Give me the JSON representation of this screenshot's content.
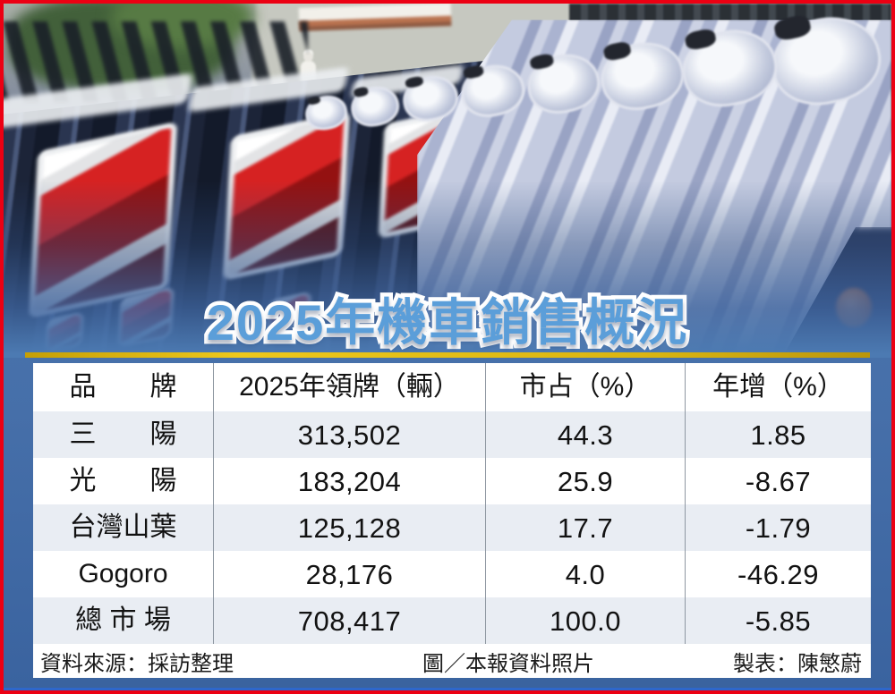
{
  "title": {
    "text": "2025年機車銷售概況",
    "color": "#5b9ed9"
  },
  "colors": {
    "frame_red": "#ec0013",
    "panel_blue": "#4a77b0",
    "gold_rule": "#ddb410",
    "row_stripe": "#e9edf3"
  },
  "photo": {
    "description_icons": {
      "scooter_row_icon": "rows of lavender scooters",
      "taillight_icon": "red motorcycle taillights"
    }
  },
  "table": {
    "columns": [
      "品　　牌",
      "2025年領牌（輛）",
      "市占（%）",
      "年增（%）"
    ],
    "rows": [
      [
        "三　　陽",
        "313,502",
        "44.3",
        "1.85"
      ],
      [
        "光　　陽",
        "183,204",
        "25.9",
        "-8.67"
      ],
      [
        "台灣山葉",
        "125,128",
        "17.7",
        "-1.79"
      ],
      [
        "Gogoro",
        "28,176",
        "4.0",
        "-46.29"
      ],
      [
        "總 市 場",
        "708,417",
        "100.0",
        "-5.85"
      ]
    ]
  },
  "footer": {
    "source": "資料來源：採訪整理",
    "photo_credit": "圖／本報資料照片",
    "table_credit": "製表：陳慜蔚"
  },
  "chart_data": {
    "type": "table",
    "title": "2025年機車銷售概況",
    "columns": [
      "品牌",
      "2025年領牌（輛）",
      "市占（%）",
      "年增（%）"
    ],
    "rows": [
      {
        "brand": "三陽",
        "registrations_2025": 313502,
        "market_share_pct": 44.3,
        "yoy_growth_pct": 1.85
      },
      {
        "brand": "光陽",
        "registrations_2025": 183204,
        "market_share_pct": 25.9,
        "yoy_growth_pct": -8.67
      },
      {
        "brand": "台灣山葉",
        "registrations_2025": 125128,
        "market_share_pct": 17.7,
        "yoy_growth_pct": -1.79
      },
      {
        "brand": "Gogoro",
        "registrations_2025": 28176,
        "market_share_pct": 4.0,
        "yoy_growth_pct": -46.29
      },
      {
        "brand": "總市場",
        "registrations_2025": 708417,
        "market_share_pct": 100.0,
        "yoy_growth_pct": -5.85
      }
    ],
    "notes": {
      "source": "資料來源：採訪整理",
      "photo": "圖／本報資料照片",
      "made_by": "製表：陳慜蔚"
    }
  }
}
